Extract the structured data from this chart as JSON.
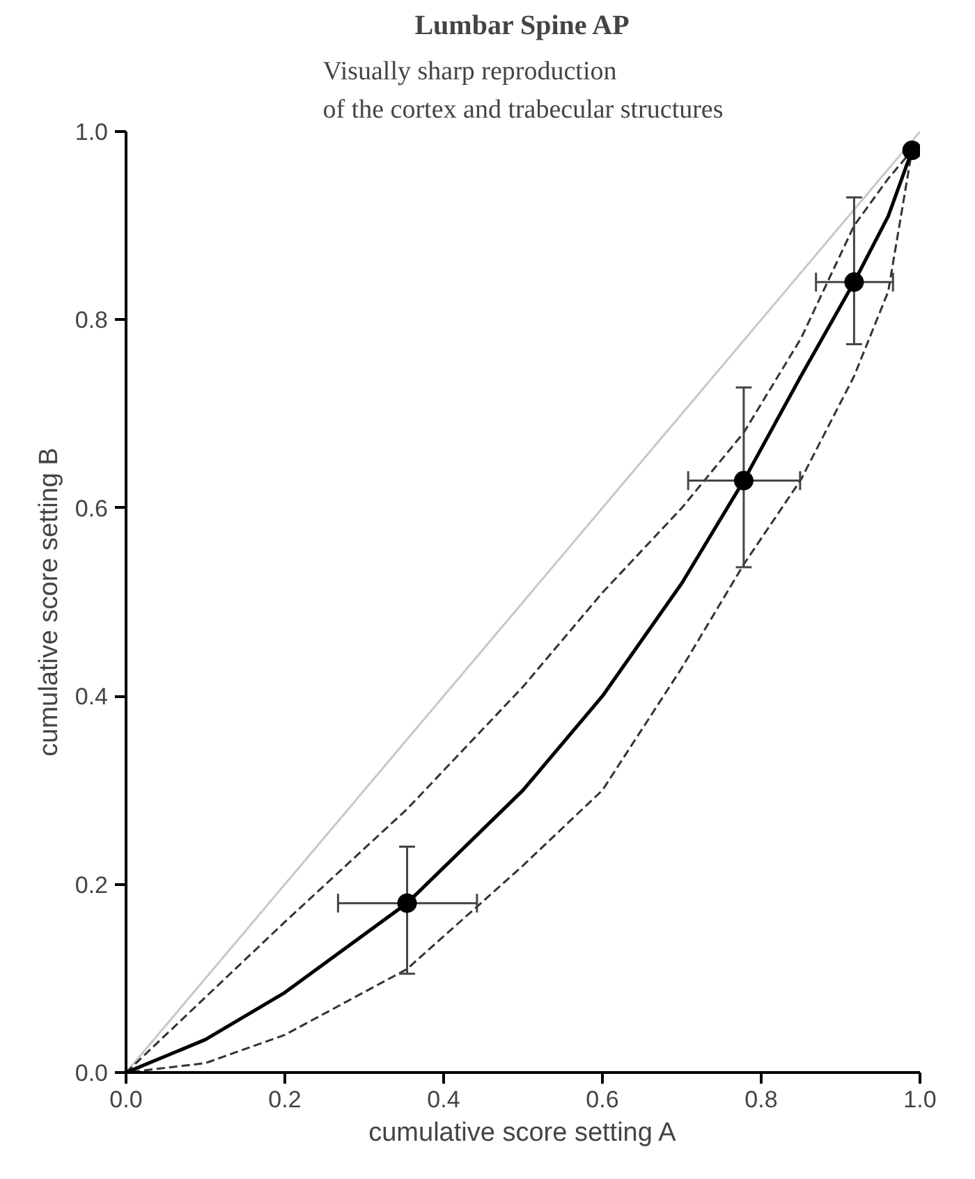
{
  "chart_data": {
    "type": "line",
    "title": "Lumbar Spine AP",
    "subtitle": "Visually sharp reproduction\nof the cortex and trabecular structures",
    "xlabel": "cumulative score setting A",
    "ylabel": "cumulative score setting B",
    "xlim": [
      0,
      1
    ],
    "ylim": [
      0,
      1
    ],
    "xticks": [
      {
        "value": 0,
        "label": "0.0"
      },
      {
        "value": 0.2,
        "label": "0.2"
      },
      {
        "value": 0.4,
        "label": "0.4"
      },
      {
        "value": 0.6,
        "label": "0.6"
      },
      {
        "value": 0.8,
        "label": "0.8"
      },
      {
        "value": 1,
        "label": "1.0"
      }
    ],
    "yticks": [
      {
        "value": 0,
        "label": "0.0"
      },
      {
        "value": 0.2,
        "label": "0.2"
      },
      {
        "value": 0.4,
        "label": "0.4"
      },
      {
        "value": 0.6,
        "label": "0.6"
      },
      {
        "value": 0.8,
        "label": "0.8"
      },
      {
        "value": 1,
        "label": "1.0"
      }
    ],
    "grid": false,
    "series": [
      {
        "color": "#c8c8c8",
        "line_style": "solid",
        "x": [
          0,
          1
        ],
        "values": [
          0,
          1
        ]
      },
      {
        "color": "#000000",
        "line_style": "solid",
        "x": [
          0,
          0.1,
          0.2,
          0.354,
          0.5,
          0.6,
          0.7,
          0.778,
          0.85,
          0.917,
          0.96,
          0.99
        ],
        "values": [
          0,
          0.035,
          0.085,
          0.18,
          0.3,
          0.4,
          0.52,
          0.629,
          0.74,
          0.84,
          0.91,
          0.98
        ],
        "lower": [
          0,
          0.01,
          0.04,
          0.11,
          0.22,
          0.3,
          0.43,
          0.54,
          0.63,
          0.74,
          0.83,
          0.98
        ],
        "upper": [
          0,
          0.08,
          0.16,
          0.28,
          0.41,
          0.51,
          0.6,
          0.68,
          0.78,
          0.9,
          0.95,
          0.98
        ]
      },
      {
        "type": "scatter",
        "color": "#000000",
        "marker": "circle",
        "x": [
          0.354,
          0.778,
          0.917,
          0.99
        ],
        "values": [
          0.18,
          0.629,
          0.84,
          0.98
        ],
        "errors": [
          [
            0.105,
            0.24
          ],
          [
            0.537,
            0.728
          ],
          [
            0.774,
            0.93
          ],
          null
        ],
        "xerrors": [
          [
            0.267,
            0.442
          ],
          [
            0.708,
            0.849
          ],
          [
            0.869,
            0.966
          ],
          null
        ]
      }
    ]
  }
}
